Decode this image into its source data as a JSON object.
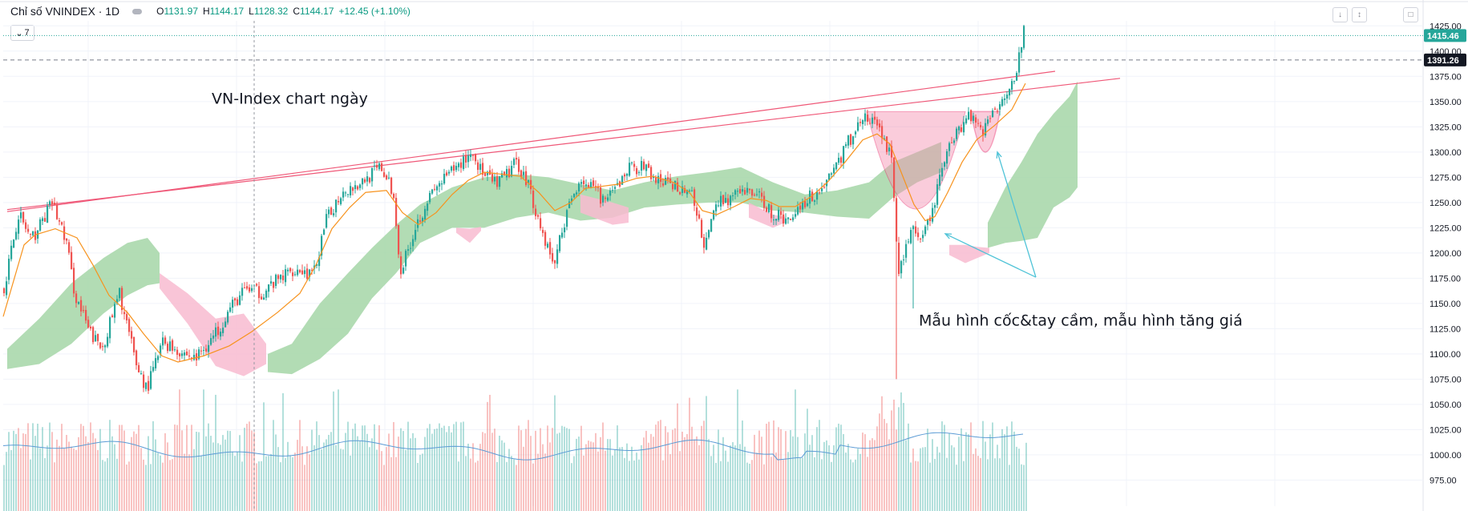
{
  "header": {
    "title": "Chỉ số VNINDEX · 1D",
    "open_label": "O",
    "open": "1131.97",
    "high_label": "H",
    "high": "1144.17",
    "low_label": "L",
    "low": "1128.32",
    "close_label": "C",
    "close": "1144.17",
    "change": "+12.45 (+1.10%)",
    "indicator_toggle": "7"
  },
  "toolbar": {
    "icons": [
      "arrow-down-icon",
      "collapse-icon",
      "fullscreen-icon"
    ]
  },
  "colors": {
    "up": "#26a69a",
    "down": "#ef5350",
    "ma": "#f7931e",
    "volume_ma": "#5b9bd5",
    "cloud_bull": "#a5d6a7",
    "cloud_bear": "#f8bbd0",
    "trendline": "#ef5777",
    "arrow": "#4fc3d7",
    "last_price_bg": "#26a69a",
    "dashed_price_bg": "#131722"
  },
  "chart_data": {
    "type": "candlestick",
    "timeframe": "1D",
    "ylim": [
      965,
      1430
    ],
    "yticks": [
      "1425.00",
      "1400.00",
      "1375.00",
      "1350.00",
      "1325.00",
      "1300.00",
      "1275.00",
      "1250.00",
      "1225.00",
      "1200.00",
      "1175.00",
      "1150.00",
      "1125.00",
      "1100.00",
      "1075.00",
      "1050.00",
      "1025.00",
      "1000.00",
      "975.00"
    ],
    "price_labels": {
      "last": "1415.46",
      "dashed": "1391.26"
    },
    "close_anchors": [
      [
        0,
        1165
      ],
      [
        18,
        1240
      ],
      [
        34,
        1212
      ],
      [
        60,
        1250
      ],
      [
        78,
        1210
      ],
      [
        88,
        1160
      ],
      [
        106,
        1122
      ],
      [
        122,
        1105
      ],
      [
        144,
        1160
      ],
      [
        164,
        1092
      ],
      [
        178,
        1065
      ],
      [
        198,
        1112
      ],
      [
        238,
        1095
      ],
      [
        262,
        1118
      ],
      [
        282,
        1145
      ],
      [
        302,
        1165
      ],
      [
        320,
        1160
      ],
      [
        340,
        1172
      ],
      [
        362,
        1185
      ],
      [
        386,
        1178
      ],
      [
        402,
        1232
      ],
      [
        422,
        1262
      ],
      [
        442,
        1268
      ],
      [
        470,
        1285
      ],
      [
        485,
        1260
      ],
      [
        495,
        1182
      ],
      [
        514,
        1228
      ],
      [
        528,
        1252
      ],
      [
        545,
        1270
      ],
      [
        565,
        1285
      ],
      [
        583,
        1300
      ],
      [
        600,
        1275
      ],
      [
        616,
        1268
      ],
      [
        640,
        1290
      ],
      [
        654,
        1268
      ],
      [
        668,
        1228
      ],
      [
        686,
        1188
      ],
      [
        698,
        1230
      ],
      [
        718,
        1275
      ],
      [
        735,
        1262
      ],
      [
        752,
        1250
      ],
      [
        780,
        1285
      ],
      [
        800,
        1285
      ],
      [
        812,
        1272
      ],
      [
        830,
        1268
      ],
      [
        856,
        1262
      ],
      [
        875,
        1205
      ],
      [
        888,
        1250
      ],
      [
        910,
        1256
      ],
      [
        935,
        1262
      ],
      [
        960,
        1238
      ],
      [
        978,
        1232
      ],
      [
        995,
        1250
      ],
      [
        1018,
        1262
      ],
      [
        1040,
        1290
      ],
      [
        1070,
        1335
      ],
      [
        1092,
        1325
      ],
      [
        1108,
        1290
      ],
      [
        1115,
        1175
      ],
      [
        1122,
        1200
      ],
      [
        1134,
        1228
      ],
      [
        1142,
        1205
      ],
      [
        1158,
        1242
      ],
      [
        1172,
        1290
      ],
      [
        1185,
        1318
      ],
      [
        1205,
        1338
      ],
      [
        1222,
        1322
      ],
      [
        1232,
        1338
      ],
      [
        1248,
        1358
      ],
      [
        1262,
        1380
      ],
      [
        1272,
        1418
      ]
    ],
    "ma_anchors": [
      [
        0,
        1137
      ],
      [
        26,
        1208
      ],
      [
        40,
        1218
      ],
      [
        65,
        1224
      ],
      [
        92,
        1215
      ],
      [
        112,
        1188
      ],
      [
        132,
        1158
      ],
      [
        155,
        1141
      ],
      [
        175,
        1120
      ],
      [
        198,
        1098
      ],
      [
        218,
        1092
      ],
      [
        250,
        1098
      ],
      [
        282,
        1108
      ],
      [
        310,
        1122
      ],
      [
        342,
        1141
      ],
      [
        370,
        1160
      ],
      [
        390,
        1188
      ],
      [
        410,
        1224
      ],
      [
        432,
        1245
      ],
      [
        452,
        1260
      ],
      [
        478,
        1262
      ],
      [
        498,
        1240
      ],
      [
        518,
        1228
      ],
      [
        540,
        1240
      ],
      [
        560,
        1258
      ],
      [
        580,
        1272
      ],
      [
        600,
        1280
      ],
      [
        622,
        1278
      ],
      [
        645,
        1276
      ],
      [
        668,
        1260
      ],
      [
        688,
        1242
      ],
      [
        708,
        1250
      ],
      [
        726,
        1264
      ],
      [
        746,
        1266
      ],
      [
        766,
        1268
      ],
      [
        790,
        1274
      ],
      [
        810,
        1276
      ],
      [
        836,
        1270
      ],
      [
        856,
        1260
      ],
      [
        872,
        1242
      ],
      [
        890,
        1238
      ],
      [
        912,
        1246
      ],
      [
        932,
        1254
      ],
      [
        952,
        1252
      ],
      [
        968,
        1246
      ],
      [
        988,
        1246
      ],
      [
        1008,
        1256
      ],
      [
        1028,
        1270
      ],
      [
        1050,
        1290
      ],
      [
        1072,
        1312
      ],
      [
        1090,
        1318
      ],
      [
        1106,
        1308
      ],
      [
        1120,
        1280
      ],
      [
        1136,
        1248
      ],
      [
        1150,
        1232
      ],
      [
        1162,
        1236
      ],
      [
        1178,
        1260
      ],
      [
        1196,
        1290
      ],
      [
        1214,
        1312
      ],
      [
        1236,
        1326
      ],
      [
        1258,
        1342
      ],
      [
        1275,
        1368
      ]
    ],
    "volume": {
      "max_label_y": 1060,
      "base_y": 965,
      "ma_level_y": 1005
    },
    "cloud_bull_bands": [
      {
        "x": [
          5,
          45,
          85,
          125,
          155,
          180,
          195
        ],
        "top": [
          1105,
          1135,
          1170,
          1195,
          1210,
          1215,
          1200
        ],
        "bottom": [
          1085,
          1090,
          1110,
          1140,
          1158,
          1168,
          1170
        ]
      },
      {
        "x": [
          330,
          360,
          395,
          430,
          460,
          490,
          520,
          560,
          600,
          640,
          680,
          720,
          760,
          800,
          840,
          880,
          920,
          960,
          1000,
          1040,
          1080,
          1110,
          1140,
          1170
        ],
        "top": [
          1100,
          1110,
          1150,
          1180,
          1205,
          1228,
          1248,
          1265,
          1275,
          1278,
          1275,
          1268,
          1262,
          1270,
          1276,
          1280,
          1285,
          1270,
          1258,
          1262,
          1270,
          1290,
          1300,
          1310
        ],
        "bottom": [
          1082,
          1080,
          1095,
          1120,
          1155,
          1180,
          1210,
          1225,
          1225,
          1235,
          1240,
          1232,
          1235,
          1245,
          1248,
          1250,
          1250,
          1242,
          1240,
          1236,
          1234,
          1255,
          1270,
          1280
        ]
      },
      {
        "x": [
          1228,
          1250,
          1270,
          1290,
          1310,
          1330,
          1340
        ],
        "top": [
          1230,
          1265,
          1290,
          1318,
          1338,
          1355,
          1370
        ],
        "bottom": [
          1205,
          1210,
          1212,
          1215,
          1245,
          1255,
          1265
        ]
      }
    ],
    "cloud_bear_bands": [
      {
        "x": [
          195,
          230,
          265,
          300,
          328
        ],
        "top": [
          1180,
          1160,
          1135,
          1140,
          1110
        ],
        "bottom": [
          1165,
          1130,
          1088,
          1078,
          1090
        ]
      },
      {
        "x": [
          565,
          582,
          596
        ],
        "top": [
          1225,
          1224,
          1226
        ],
        "bottom": [
          1220,
          1210,
          1222
        ]
      },
      {
        "x": [
          720,
          760,
          780
        ],
        "top": [
          1258,
          1250,
          1245
        ],
        "bottom": [
          1240,
          1228,
          1230
        ]
      },
      {
        "x": [
          930,
          960,
          975
        ],
        "top": [
          1250,
          1238,
          1236
        ],
        "bottom": [
          1235,
          1225,
          1230
        ]
      },
      {
        "x": [
          1180,
          1200,
          1215,
          1230
        ],
        "top": [
          1208,
          1208,
          1206,
          1205
        ],
        "bottom": [
          1198,
          1190,
          1195,
          1200
        ]
      }
    ],
    "trendlines": [
      {
        "x1": 5,
        "y1": 1241,
        "x2": 1312,
        "y2": 1380
      },
      {
        "x1": 5,
        "y1": 1243,
        "x2": 1393,
        "y2": 1373
      }
    ],
    "cup_pattern": {
      "x_left": 1077,
      "x_right": 1200,
      "y_top": 1340,
      "y_bottom": 1207
    },
    "handle_pattern": {
      "x_left": 1207,
      "x_right": 1243,
      "y_top": 1340,
      "y_bottom": 1300
    },
    "arrows": [
      {
        "from_x": 1288,
        "from_y": 1176,
        "to_x": 1175,
        "to_y": 1219
      },
      {
        "from_x": 1288,
        "from_y": 1176,
        "to_x": 1240,
        "to_y": 1300
      }
    ],
    "crosshair_x": 313,
    "annotations": [
      {
        "text": "VN-Index chart ngày",
        "x": 260,
        "y": 1348,
        "size": 19
      },
      {
        "text": "Mẫu hình cốc&tay cầm, mẫu hình tăng giá",
        "x": 1142,
        "y": 1128,
        "size": 19
      }
    ]
  }
}
